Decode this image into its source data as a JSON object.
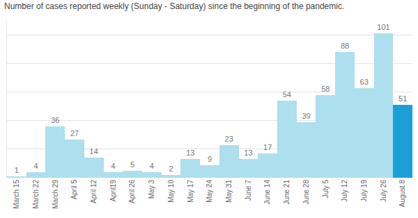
{
  "chart_data": {
    "type": "bar",
    "title": "Number of cases reported weekly (Sunday - Saturday) since the beginning of the pandemic.",
    "categories": [
      "March 15",
      "March 22",
      "March 29",
      "April 5",
      "April 12",
      "April19",
      "April 26",
      "May 3",
      "May 10",
      "May 17",
      "May 24",
      "May 31",
      "June 7",
      "June 14",
      "June 21",
      "June 28",
      "July 5",
      "July 12",
      "July 19",
      "July 26",
      "August 8"
    ],
    "values": [
      1,
      4,
      36,
      27,
      14,
      4,
      5,
      4,
      2,
      13,
      9,
      23,
      13,
      17,
      54,
      39,
      58,
      88,
      63,
      101,
      51
    ],
    "colors": [
      "#addfee",
      "#addfee",
      "#addfee",
      "#addfee",
      "#addfee",
      "#addfee",
      "#addfee",
      "#addfee",
      "#addfee",
      "#addfee",
      "#addfee",
      "#addfee",
      "#addfee",
      "#addfee",
      "#addfee",
      "#addfee",
      "#addfee",
      "#addfee",
      "#addfee",
      "#addfee",
      "#1b9fd5"
    ],
    "ylim": [
      0,
      110
    ],
    "yticks": [
      0,
      20,
      40,
      60,
      80,
      100
    ],
    "grid": true,
    "data_labels": true,
    "tick_labels": "x"
  }
}
